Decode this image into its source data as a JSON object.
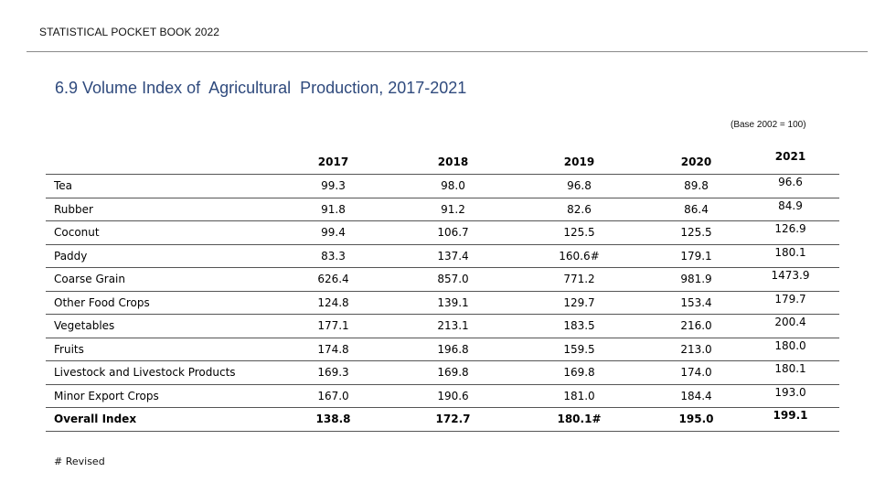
{
  "header": {
    "title": "STATISTICAL POCKET BOOK 2022"
  },
  "table": {
    "title": "6.9 Volume Index of  Agricultural  Production, 2017-2021",
    "base_note": "(Base 2002 = 100)",
    "columns": [
      "",
      "2017",
      "2018",
      "2019",
      "2020",
      "2021"
    ],
    "rows": [
      {
        "label": "Tea",
        "values": [
          "99.3",
          "98.0",
          "96.8",
          "89.8",
          "96.6"
        ]
      },
      {
        "label": "Rubber",
        "values": [
          "91.8",
          "91.2",
          "82.6",
          "86.4",
          "84.9"
        ]
      },
      {
        "label": "Coconut",
        "values": [
          "99.4",
          "106.7",
          "125.5",
          "125.5",
          "126.9"
        ]
      },
      {
        "label": "Paddy",
        "values": [
          "83.3",
          "137.4",
          "160.6#",
          "179.1",
          "180.1"
        ]
      },
      {
        "label": "Coarse Grain",
        "values": [
          "626.4",
          "857.0",
          "771.2",
          "981.9",
          "1473.9"
        ]
      },
      {
        "label": "Other Food Crops",
        "values": [
          "124.8",
          "139.1",
          "129.7",
          "153.4",
          "179.7"
        ]
      },
      {
        "label": "Vegetables",
        "values": [
          "177.1",
          "213.1",
          "183.5",
          "216.0",
          "200.4"
        ]
      },
      {
        "label": "Fruits",
        "values": [
          "174.8",
          "196.8",
          "159.5",
          "213.0",
          "180.0"
        ]
      },
      {
        "label": "Livestock and Livestock Products",
        "values": [
          "169.3",
          "169.8",
          "169.8",
          "174.0",
          "180.1"
        ]
      },
      {
        "label": "Minor Export Crops",
        "values": [
          "167.0",
          "190.6",
          "181.0",
          "184.4",
          "193.0"
        ]
      },
      {
        "label": "Overall Index",
        "values": [
          "138.8",
          "172.7",
          "180.1#",
          "195.0",
          "199.1"
        ]
      }
    ]
  },
  "footnote": "# Revised",
  "colors": {
    "title": "#2f4a7d",
    "rule": "#555555"
  }
}
